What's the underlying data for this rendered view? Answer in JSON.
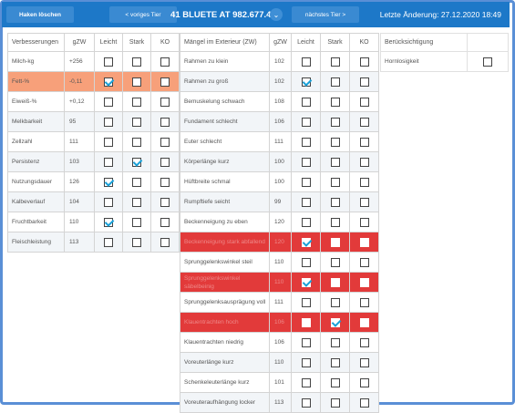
{
  "topbar": {
    "haken_label": "Haken löschen",
    "prev_label": "< voriges Tier",
    "animal_label": "41 BLUETE AT 982.677.494",
    "next_label": "nächstes Tier >",
    "last_change": "Letzte Änderung: 27.12.2020 18:49",
    "accent": "#1d78c8"
  },
  "verbesserungen": {
    "headers": [
      "Verbesserungen",
      "gZW",
      "Leicht",
      "Stark",
      "KO"
    ],
    "rows": [
      {
        "label": "Milch-kg",
        "gzw": "+256",
        "leicht": false,
        "stark": false,
        "ko": false,
        "hl": ""
      },
      {
        "label": "Fett-%",
        "gzw": "-0,11",
        "leicht": true,
        "stark": false,
        "ko": false,
        "hl": "orange"
      },
      {
        "label": "Eiweiß-%",
        "gzw": "+0,12",
        "leicht": false,
        "stark": false,
        "ko": false,
        "hl": ""
      },
      {
        "label": "Melkbarkeit",
        "gzw": "95",
        "leicht": false,
        "stark": false,
        "ko": false,
        "hl": ""
      },
      {
        "label": "Zellzahl",
        "gzw": "111",
        "leicht": false,
        "stark": false,
        "ko": false,
        "hl": ""
      },
      {
        "label": "Persistenz",
        "gzw": "103",
        "leicht": false,
        "stark": true,
        "ko": false,
        "hl": ""
      },
      {
        "label": "Nutzungsdauer",
        "gzw": "126",
        "leicht": true,
        "stark": false,
        "ko": false,
        "hl": ""
      },
      {
        "label": "Kalbeverlauf",
        "gzw": "104",
        "leicht": false,
        "stark": false,
        "ko": false,
        "hl": ""
      },
      {
        "label": "Fruchtbarkeit",
        "gzw": "110",
        "leicht": true,
        "stark": false,
        "ko": false,
        "hl": ""
      },
      {
        "label": "Fleischleistung",
        "gzw": "113",
        "leicht": false,
        "stark": false,
        "ko": false,
        "hl": ""
      }
    ]
  },
  "maengel": {
    "headers": [
      "Mängel im Exterieur (ZW)",
      "gZW",
      "Leicht",
      "Stark",
      "KO"
    ],
    "rows": [
      {
        "label": "Rahmen zu klein",
        "gzw": "102",
        "leicht": false,
        "stark": false,
        "ko": false,
        "hl": ""
      },
      {
        "label": "Rahmen zu groß",
        "gzw": "102",
        "leicht": true,
        "stark": false,
        "ko": false,
        "hl": ""
      },
      {
        "label": "Bemuskelung schwach",
        "gzw": "108",
        "leicht": false,
        "stark": false,
        "ko": false,
        "hl": ""
      },
      {
        "label": "Fundament schlecht",
        "gzw": "106",
        "leicht": false,
        "stark": false,
        "ko": false,
        "hl": ""
      },
      {
        "label": "Euter schlecht",
        "gzw": "111",
        "leicht": false,
        "stark": false,
        "ko": false,
        "hl": ""
      },
      {
        "label": "Körperlänge kurz",
        "gzw": "100",
        "leicht": false,
        "stark": false,
        "ko": false,
        "hl": ""
      },
      {
        "label": "Hüftbreite schmal",
        "gzw": "100",
        "leicht": false,
        "stark": false,
        "ko": false,
        "hl": ""
      },
      {
        "label": "Rumpftiefe seicht",
        "gzw": "99",
        "leicht": false,
        "stark": false,
        "ko": false,
        "hl": ""
      },
      {
        "label": "Beckenneigung zu eben",
        "gzw": "120",
        "leicht": false,
        "stark": false,
        "ko": false,
        "hl": ""
      },
      {
        "label": "Beckenneigung stark abfallend",
        "gzw": "120",
        "leicht": true,
        "stark": false,
        "ko": false,
        "hl": "red"
      },
      {
        "label": "Sprunggelenkswinkel steil",
        "gzw": "110",
        "leicht": false,
        "stark": false,
        "ko": false,
        "hl": ""
      },
      {
        "label": "Sprunggelenkswinkel säbelbeinig",
        "gzw": "110",
        "leicht": true,
        "stark": false,
        "ko": false,
        "hl": "red"
      },
      {
        "label": "Sprunggelenksausprägung voll",
        "gzw": "111",
        "leicht": false,
        "stark": false,
        "ko": false,
        "hl": ""
      },
      {
        "label": "Klauentrachten hoch",
        "gzw": "106",
        "leicht": false,
        "stark": true,
        "ko": false,
        "hl": "red"
      },
      {
        "label": "Klauentrachten niedrig",
        "gzw": "106",
        "leicht": false,
        "stark": false,
        "ko": false,
        "hl": ""
      },
      {
        "label": "Voreuterlänge kurz",
        "gzw": "110",
        "leicht": false,
        "stark": false,
        "ko": false,
        "hl": ""
      },
      {
        "label": "Schenkeleuterlänge kurz",
        "gzw": "101",
        "leicht": false,
        "stark": false,
        "ko": false,
        "hl": ""
      },
      {
        "label": "Voreuteraufhängung locker",
        "gzw": "113",
        "leicht": false,
        "stark": false,
        "ko": false,
        "hl": ""
      }
    ]
  },
  "berucksichtigung": {
    "header": "Berücksichtigung",
    "rows": [
      {
        "label": "Hornlosigkeit",
        "checked": false
      }
    ]
  }
}
